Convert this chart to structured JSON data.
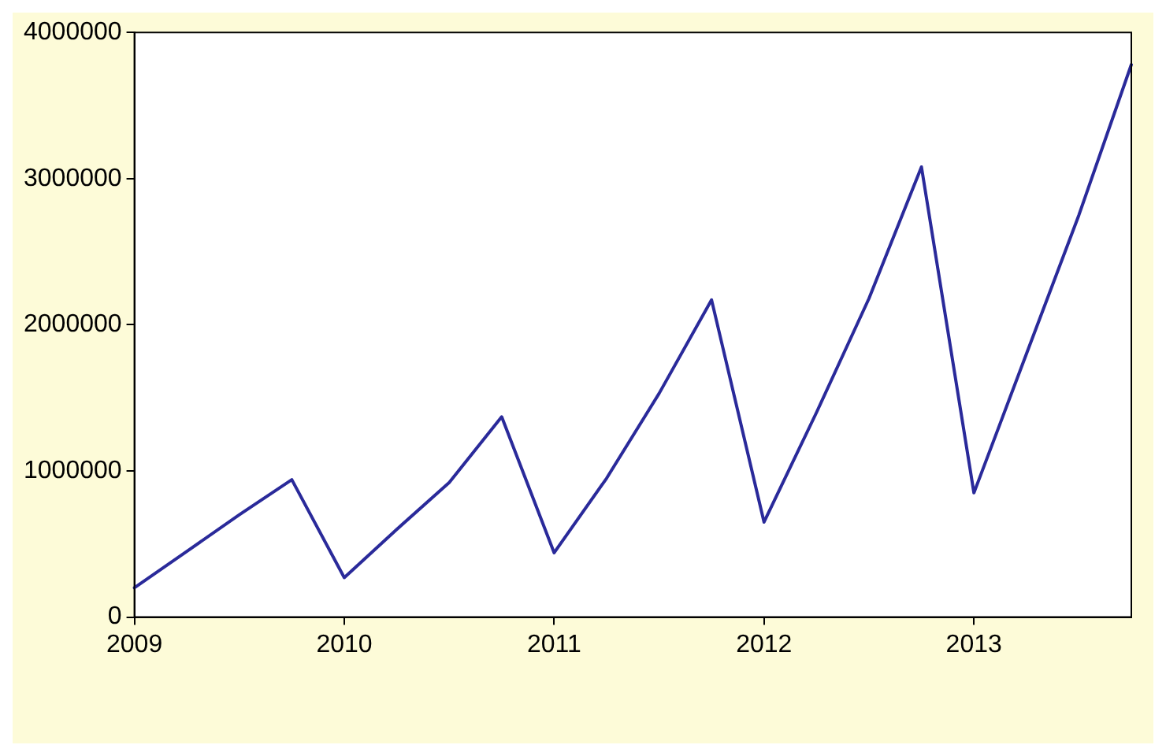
{
  "chart_data": {
    "type": "line",
    "categories": [
      "2009",
      null,
      null,
      null,
      "2010",
      null,
      null,
      null,
      "2011",
      null,
      null,
      null,
      "2012",
      null,
      null,
      null,
      "2013",
      null,
      null,
      null
    ],
    "series": [
      {
        "color": "#2a2a9a",
        "values": [
          200000,
          450000,
          700000,
          940000,
          270000,
          600000,
          920000,
          1370000,
          440000,
          950000,
          1530000,
          2170000,
          650000,
          1400000,
          2180000,
          3080000,
          850000,
          1800000,
          2750000,
          3780000
        ]
      }
    ],
    "ylim": [
      0,
      4000000
    ],
    "yticks": [
      0,
      1000000,
      2000000,
      3000000,
      4000000
    ],
    "grid": false,
    "marker": "none",
    "line_style": "solid"
  }
}
